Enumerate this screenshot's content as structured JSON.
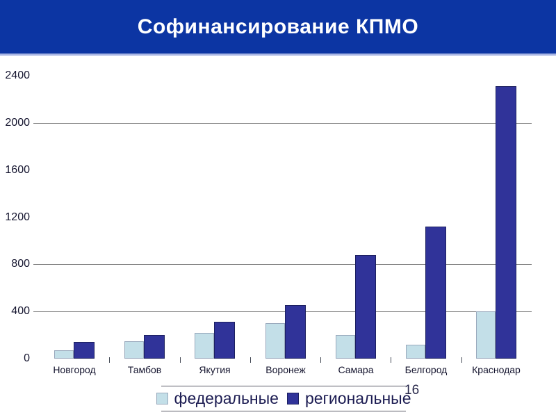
{
  "slide": {
    "title": "Софинансирование КПМО",
    "page_number": "16"
  },
  "colors": {
    "banner_bg": "#0c35a3",
    "banner_underline": "#a9b6e4",
    "federal_fill": "#c3dfe8",
    "federal_border": "#98a8bc",
    "regional_fill": "#303399",
    "regional_border": "#1c2060",
    "gridline": "#7f7f7f"
  },
  "chart_data": {
    "type": "bar",
    "title": "Софинансирование КПМО",
    "xlabel": "",
    "ylabel": "",
    "categories": [
      "Новгород",
      "Тамбов",
      "Якутия",
      "Воронеж",
      "Самара",
      "Белгород",
      "Краснодар"
    ],
    "series": [
      {
        "key": "federal",
        "name": "федеральные",
        "values": [
          70,
          150,
          220,
          300,
          200,
          120,
          400
        ]
      },
      {
        "key": "regional",
        "name": "региональные",
        "values": [
          140,
          200,
          310,
          455,
          880,
          1120,
          2310
        ]
      }
    ],
    "ylim": [
      0,
      2400
    ],
    "yticks": [
      0,
      400,
      800,
      1200,
      1600,
      2000,
      2400
    ],
    "gridlines": [
      400,
      800,
      2000
    ],
    "grid": "horizontal-partial",
    "legend_position": "bottom"
  }
}
